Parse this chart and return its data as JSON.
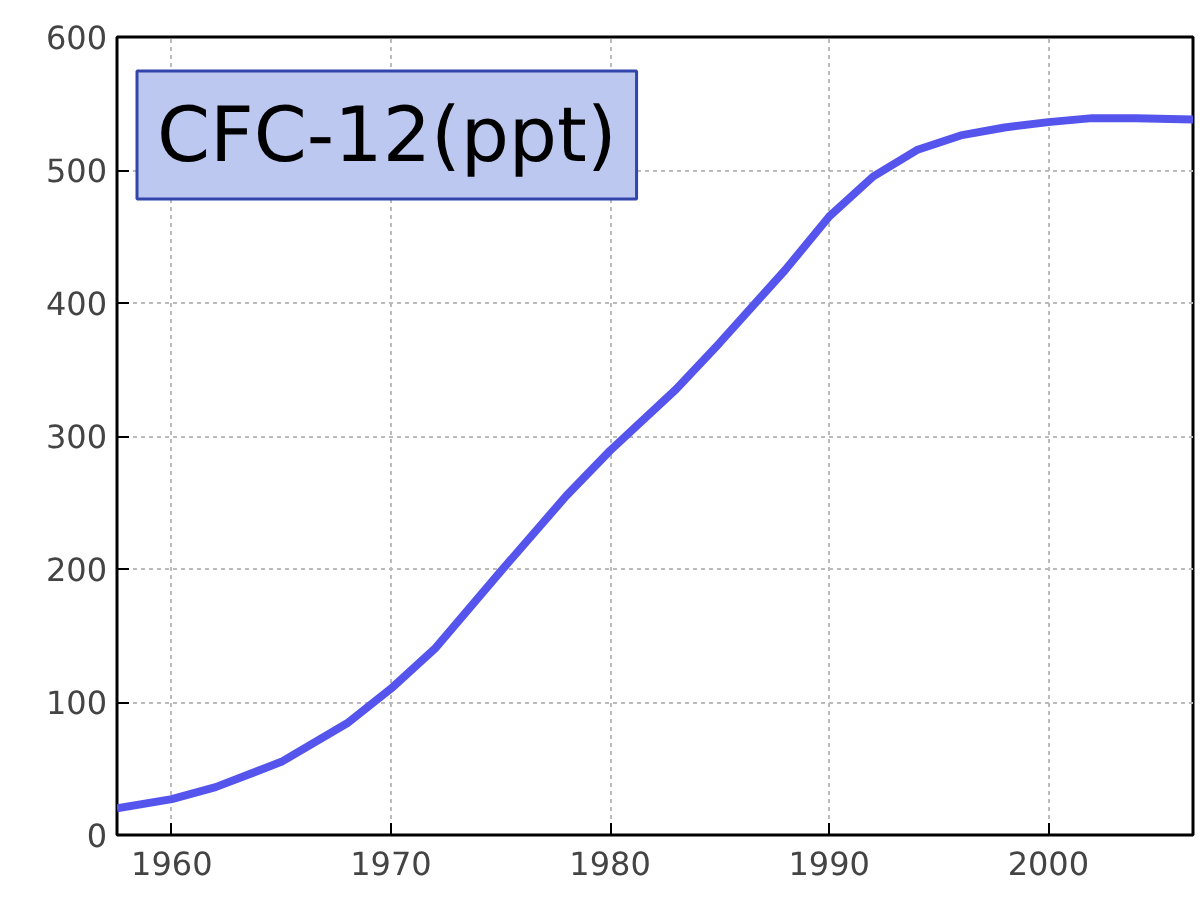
{
  "chart_data": {
    "type": "line",
    "title": "CFC-12(ppt)",
    "x": [
      1957.5,
      1960,
      1962,
      1965,
      1968,
      1970,
      1972,
      1975,
      1978,
      1980,
      1983,
      1985,
      1988,
      1990,
      1992,
      1994,
      1996,
      1998,
      2000,
      2002,
      2004,
      2006.6
    ],
    "series": [
      {
        "color": "#5555ee",
        "values": [
          20,
          27,
          36,
          55,
          84,
          110,
          140,
          198,
          255,
          289,
          335,
          370,
          425,
          465,
          495,
          515,
          526,
          532,
          536,
          539,
          539,
          538
        ]
      }
    ],
    "xlim": [
      1957.5,
      2006.6
    ],
    "ylim": [
      0,
      600
    ],
    "xticks": [
      1960,
      1970,
      1980,
      1990,
      2000
    ],
    "yticks": [
      0,
      100,
      200,
      300,
      400,
      500,
      600
    ],
    "grid": true,
    "marker": "none",
    "line_style": "solid"
  }
}
